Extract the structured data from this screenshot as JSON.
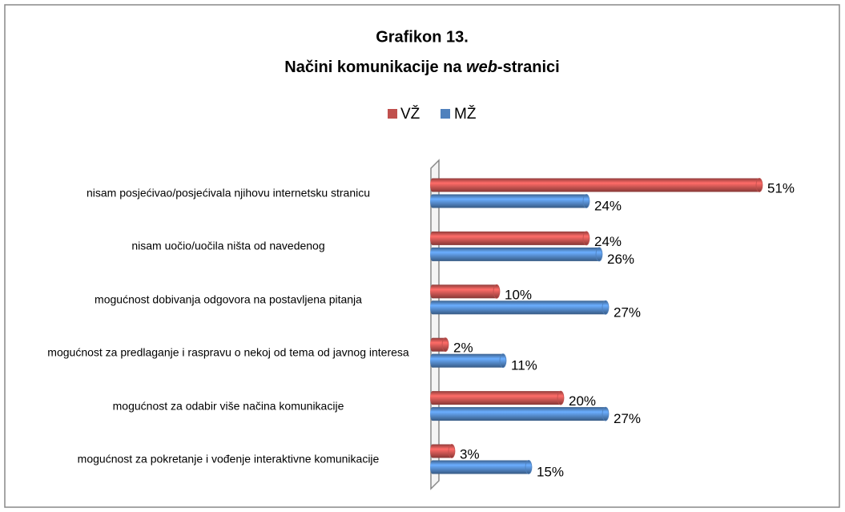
{
  "chart_data": {
    "type": "bar",
    "orientation": "horizontal",
    "title": {
      "line1": "Grafikon 13.",
      "line2": [
        "Načini komunikacije na ",
        "web",
        "-stranici"
      ]
    },
    "categories": [
      "nisam posjećivao/posjećivala njihovu internetsku stranicu",
      "nisam uočio/uočila ništa od navedenog",
      "mogućnost dobivanja odgovora na postavljena pitanja",
      "mogućnost za predlaganje i raspravu o nekoj od tema od javnog interesa",
      "mogućnost za odabir više načina komunikacije",
      "mogućnost za pokretanje i vođenje interaktivne komunikacije"
    ],
    "series": [
      {
        "name": "VŽ",
        "color": "#c0504d",
        "values": [
          51,
          24,
          10,
          2,
          20,
          3
        ],
        "value_labels": [
          "51%",
          "24%",
          "10%",
          "2%",
          "20%",
          "3%"
        ]
      },
      {
        "name": "MŽ",
        "color": "#4f81bd",
        "values": [
          24,
          26,
          27,
          11,
          27,
          15
        ],
        "value_labels": [
          "24%",
          "26%",
          "27%",
          "11%",
          "27%",
          "15%"
        ]
      }
    ],
    "legend": "top"
  }
}
